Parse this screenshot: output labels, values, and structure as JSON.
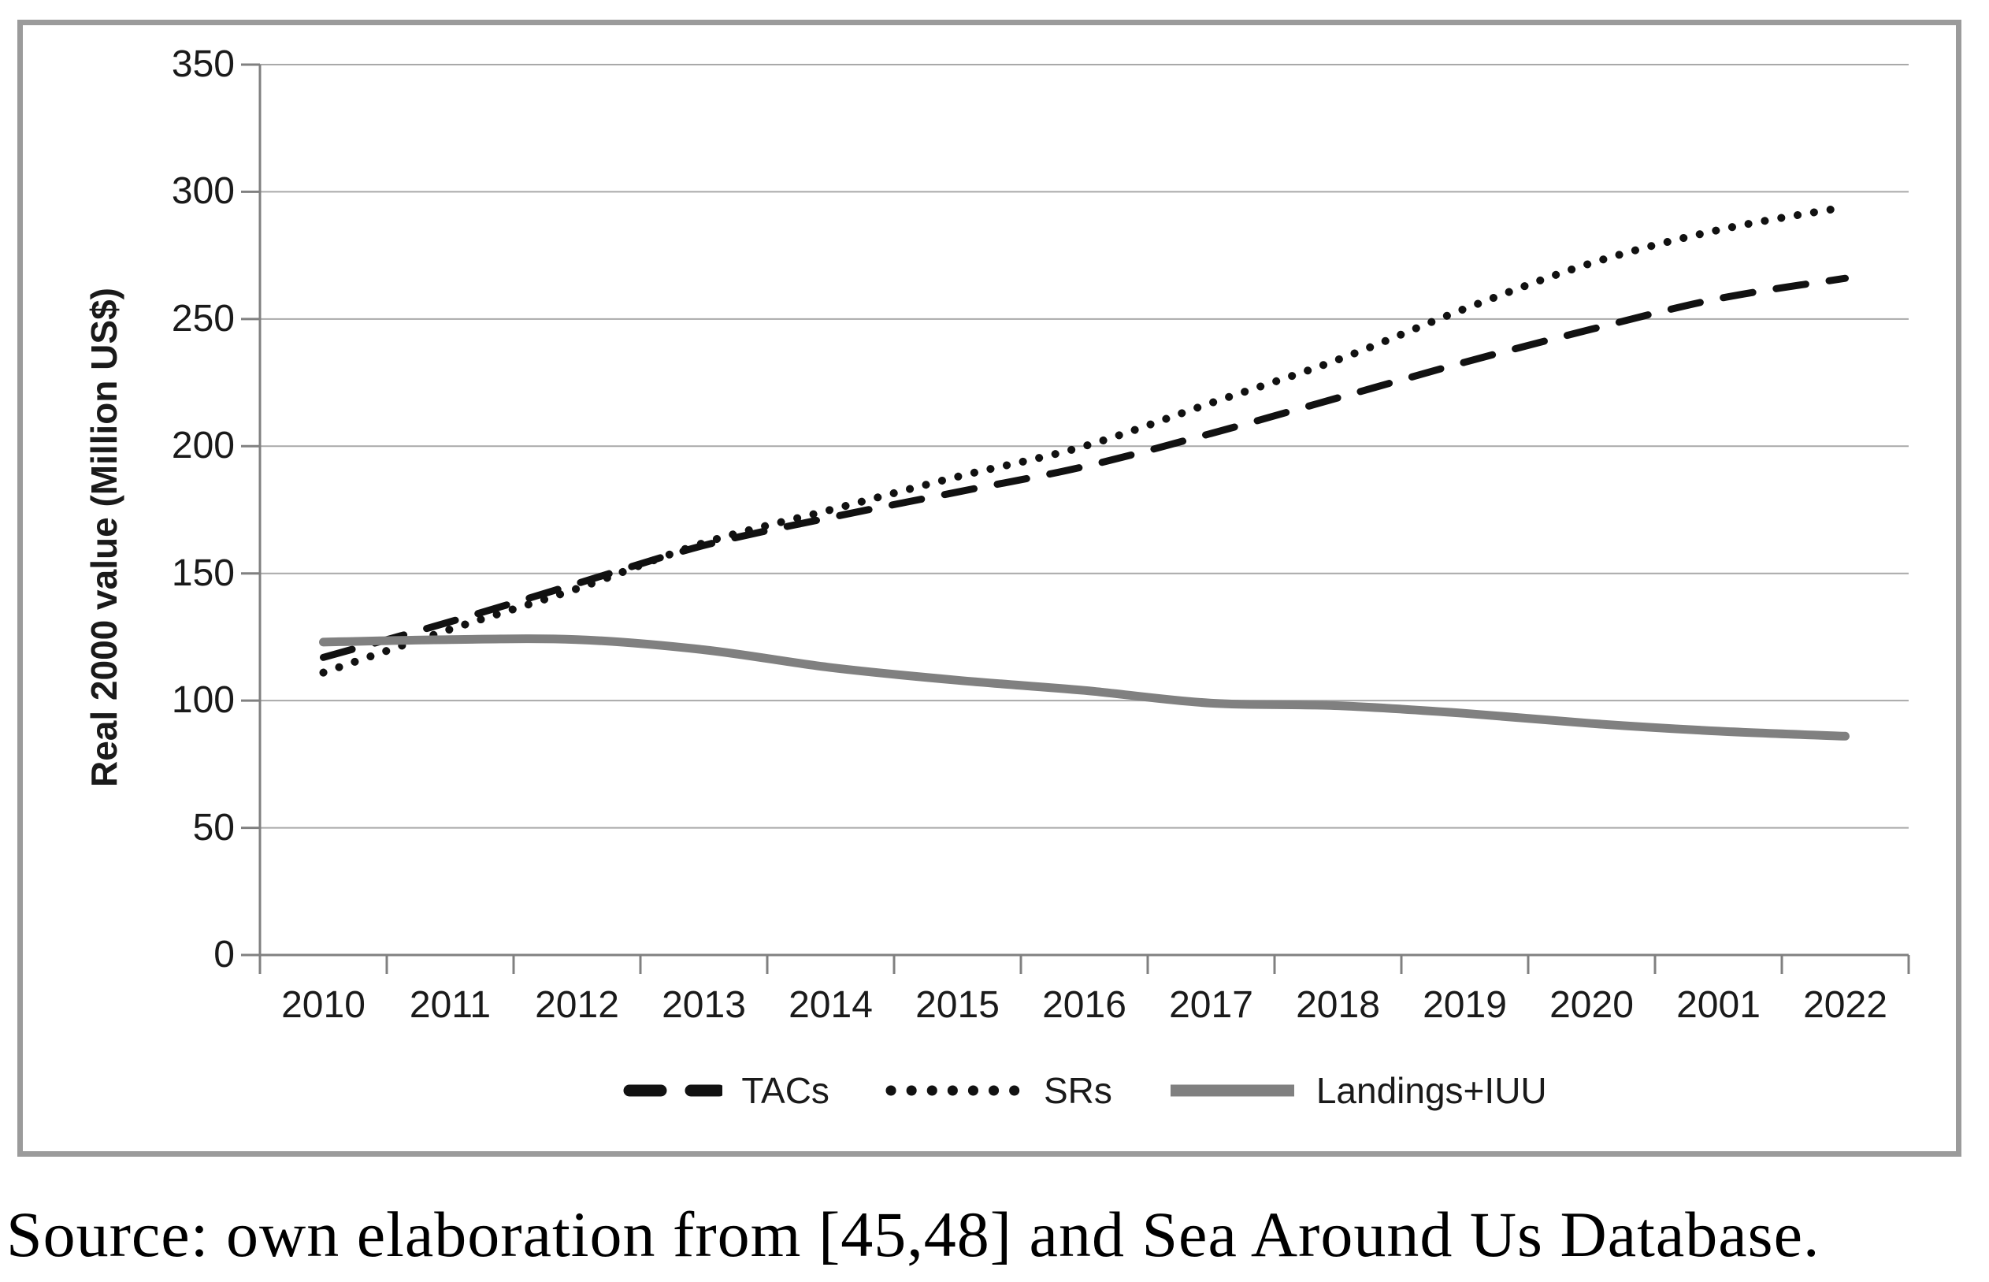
{
  "figure": {
    "y_axis_title": "Real 2000 value (Million US$)",
    "source_caption": "Source: own elaboration from [45,48] and Sea Around Us Database."
  },
  "chart_data": {
    "type": "line",
    "title": "",
    "xlabel": "",
    "ylabel": "Real 2000 value (Million US$)",
    "ylim": [
      0,
      350
    ],
    "y_ticks": [
      0,
      50,
      100,
      150,
      200,
      250,
      300,
      350
    ],
    "grid": true,
    "legend_position": "bottom",
    "categories": [
      "2010",
      "2011",
      "2012",
      "2013",
      "2014",
      "2015",
      "2016",
      "2017",
      "2018",
      "2019",
      "2020",
      "2001",
      "2022"
    ],
    "series": [
      {
        "name": "TACs",
        "line_style": "dashed",
        "color": "#111111",
        "values": [
          117,
          131,
          146,
          161,
          172,
          182,
          192,
          205,
          219,
          233,
          246,
          258,
          266
        ]
      },
      {
        "name": "SRs",
        "line_style": "dotted",
        "color": "#111111",
        "values": [
          111,
          128,
          144,
          162,
          175,
          188,
          200,
          217,
          234,
          254,
          272,
          285,
          294
        ]
      },
      {
        "name": "Landings+IUU",
        "line_style": "solid",
        "color": "#808080",
        "values": [
          123,
          124,
          124,
          120,
          113,
          108,
          104,
          99,
          98,
          95,
          91,
          88,
          86
        ]
      }
    ]
  },
  "colors": {
    "frame": "#9b9b9b",
    "gridline": "#a9a9a9",
    "axis": "#808080",
    "series_black": "#111111",
    "series_gray": "#808080",
    "text": "#1a1a1a"
  }
}
